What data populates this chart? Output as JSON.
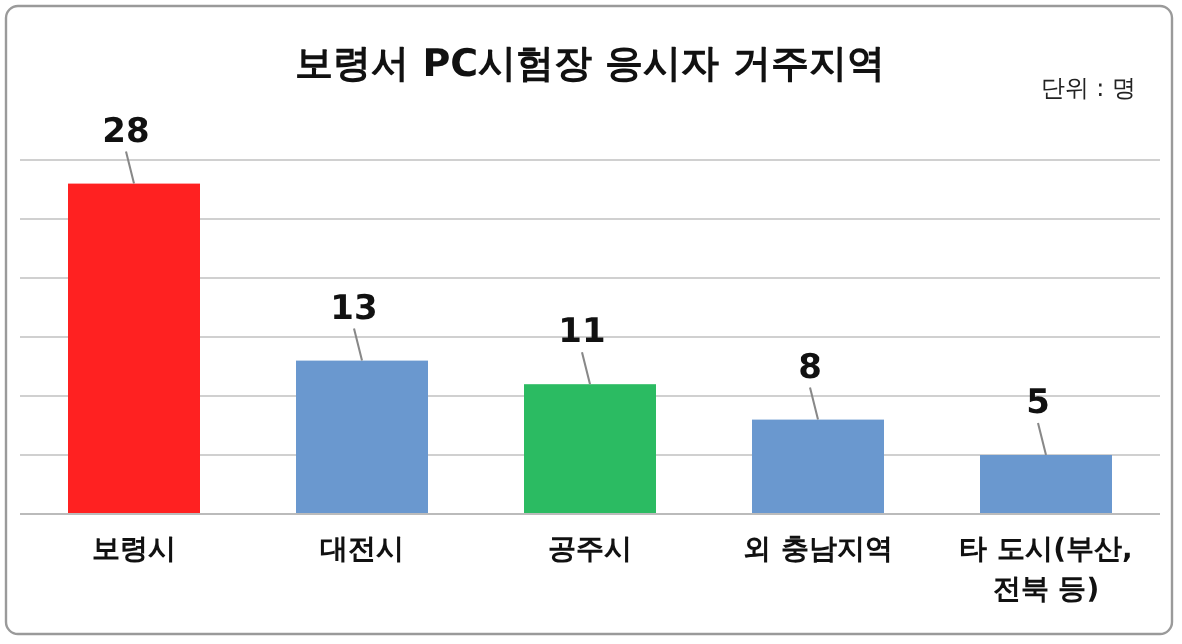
{
  "chart_data": {
    "type": "bar",
    "title": "보령서 PC시험장 응시자 거주지역",
    "annotations": [
      "단위 : 명"
    ],
    "categories": [
      "보령시",
      "대전시",
      "공주시",
      "외 충남지역",
      "타 도시(부산, 전북 등)"
    ],
    "values": [
      28,
      13,
      11,
      8,
      5
    ],
    "colors": [
      "#ff2121",
      "#6a98cf",
      "#2bbb62",
      "#6a98cf",
      "#6a98cf"
    ],
    "ylim": [
      0,
      30
    ],
    "yticks": [
      {
        "value": 0,
        "label": null
      },
      {
        "value": 5,
        "label": null
      },
      {
        "value": 10,
        "label": null
      },
      {
        "value": 15,
        "label": null
      },
      {
        "value": 20,
        "label": null
      },
      {
        "value": 25,
        "label": null
      },
      {
        "value": 30,
        "label": null
      }
    ],
    "grid": "y",
    "data_labels": true,
    "tick_labels": "x"
  }
}
